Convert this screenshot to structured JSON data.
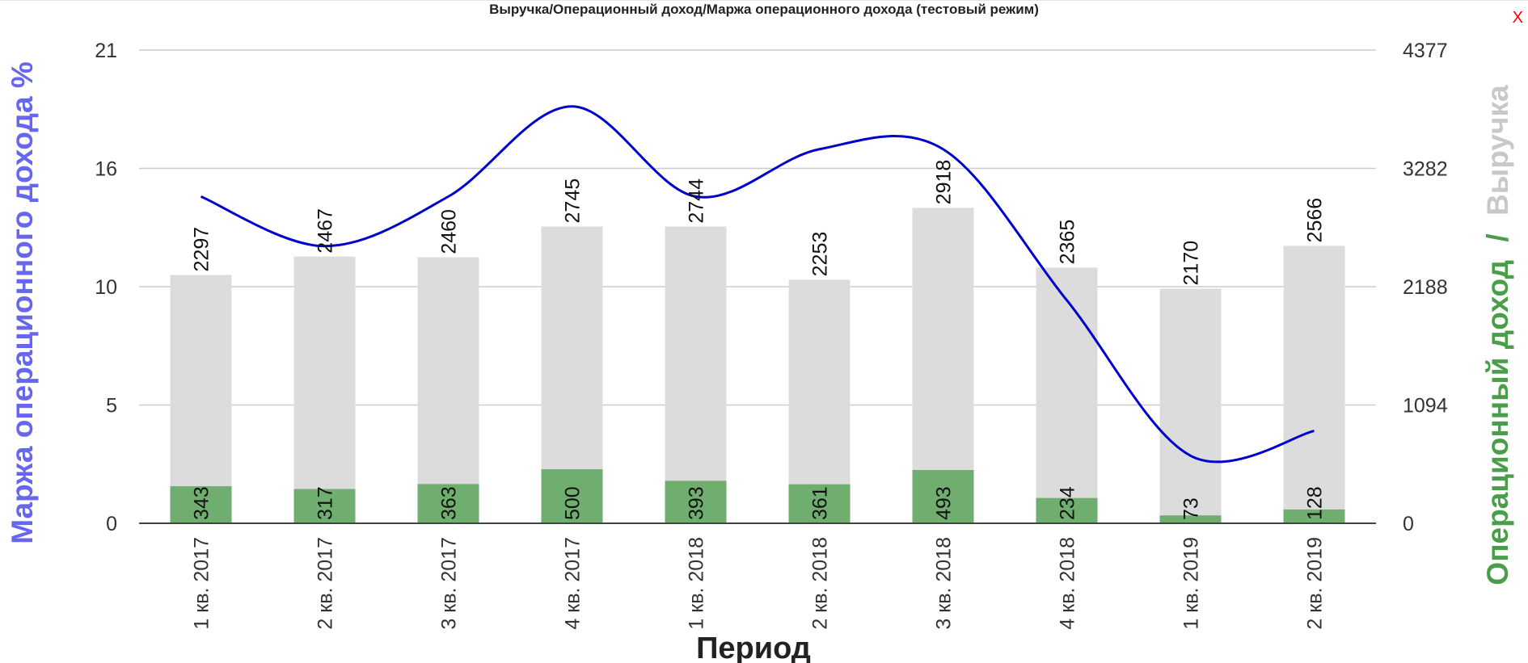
{
  "close_label": "X",
  "chart_data": {
    "type": "bar",
    "title": "Выручка/Операционный доход/Маржа операционного дохода (тестовый режим)",
    "xlabel": "Период",
    "ylabel_left": "Маржа операционного дохода %",
    "ylabel_right_revenue": "Выручка",
    "ylabel_right_separator": "/",
    "ylabel_right_income": "Операционный доход",
    "categories": [
      "1 кв. 2017",
      "2 кв. 2017",
      "3 кв. 2017",
      "4 кв. 2017",
      "1 кв. 2018",
      "2 кв. 2018",
      "3 кв. 2018",
      "4 кв. 2018",
      "1 кв. 2019",
      "2 кв. 2019"
    ],
    "left_axis": {
      "ylim": [
        0,
        21
      ],
      "ticks": [
        "0",
        "5",
        "10",
        "16",
        "21"
      ]
    },
    "right_axis": {
      "ylim": [
        0,
        4377
      ],
      "ticks": [
        "0",
        "1094",
        "2188",
        "3282",
        "4377"
      ]
    },
    "grid": true,
    "colors": {
      "revenue": "#dcdcdc",
      "income": "#6fae6f",
      "margin": "#0000cc",
      "left_title": "#6666ee",
      "right_income_title": "#4a9e4a",
      "right_revenue_title": "#c8c8c8",
      "close": "#ff0000"
    },
    "series": [
      {
        "name": "Выручка",
        "type": "bar",
        "axis": "right",
        "values": [
          2297,
          2467,
          2460,
          2745,
          2744,
          2253,
          2918,
          2365,
          2170,
          2566
        ]
      },
      {
        "name": "Операционный доход",
        "type": "bar",
        "axis": "right",
        "values": [
          343,
          317,
          363,
          500,
          393,
          361,
          493,
          234,
          73,
          128
        ]
      },
      {
        "name": "Маржа операционного дохода %",
        "type": "line",
        "axis": "left",
        "values": [
          14.5,
          12.3,
          14.5,
          18.5,
          14.5,
          16.6,
          16.6,
          9.9,
          3.0,
          4.1
        ]
      }
    ]
  }
}
